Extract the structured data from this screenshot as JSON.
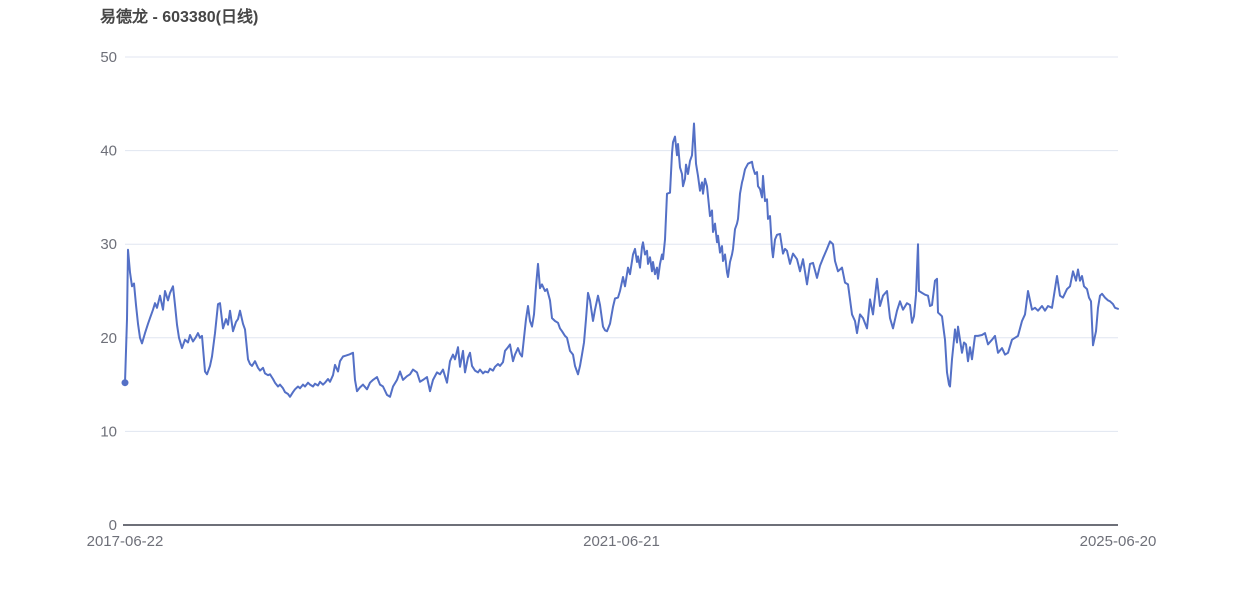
{
  "chart": {
    "colors": {
      "line": "#5470c6",
      "grid_line": "#e0e6f1",
      "axis_line": "#6e7079",
      "tick_label": "#6e7079",
      "title": "#464646",
      "background": "#ffffff"
    }
  },
  "chart_data": {
    "type": "line",
    "title": "易德龙 - 603380(日线)",
    "xlabel": "",
    "ylabel": "",
    "x_tick_labels": [
      "2017-06-22",
      "2021-06-21",
      "2025-06-20"
    ],
    "x_range": [
      "2017-06-22",
      "2025-06-20"
    ],
    "y_tick_labels": [
      0,
      10,
      20,
      30,
      40,
      50
    ],
    "ylim": [
      0,
      50
    ],
    "grid": "horizontal-gridlines-only",
    "legend": "none",
    "first_point_marker": true,
    "points_format": "[x_position_along_time_axis, price]; x maps linearly: 125 = 2017-06-22, 1118 = 2025-06-20",
    "points": [
      [
        125,
        15.2
      ],
      [
        127,
        22.0
      ],
      [
        128,
        29.4
      ],
      [
        130,
        27.0
      ],
      [
        132,
        25.5
      ],
      [
        134,
        25.8
      ],
      [
        136,
        23.5
      ],
      [
        138,
        21.5
      ],
      [
        140,
        20.0
      ],
      [
        142,
        19.4
      ],
      [
        145,
        20.5
      ],
      [
        148,
        21.5
      ],
      [
        150,
        22.1
      ],
      [
        153,
        23.0
      ],
      [
        155,
        23.7
      ],
      [
        157,
        23.2
      ],
      [
        160,
        24.5
      ],
      [
        163,
        23.0
      ],
      [
        165,
        25.0
      ],
      [
        168,
        24.0
      ],
      [
        170,
        24.8
      ],
      [
        173,
        25.5
      ],
      [
        175,
        23.5
      ],
      [
        177,
        21.4
      ],
      [
        179,
        20.0
      ],
      [
        182,
        18.9
      ],
      [
        185,
        19.8
      ],
      [
        188,
        19.5
      ],
      [
        190,
        20.3
      ],
      [
        193,
        19.6
      ],
      [
        196,
        20.1
      ],
      [
        198,
        20.5
      ],
      [
        200,
        20.0
      ],
      [
        202,
        20.2
      ],
      [
        205,
        16.4
      ],
      [
        207,
        16.1
      ],
      [
        210,
        17.0
      ],
      [
        212,
        18.0
      ],
      [
        215,
        20.5
      ],
      [
        218,
        23.6
      ],
      [
        220,
        23.7
      ],
      [
        223,
        21.0
      ],
      [
        226,
        22.0
      ],
      [
        228,
        21.4
      ],
      [
        230,
        22.9
      ],
      [
        233,
        20.7
      ],
      [
        236,
        21.7
      ],
      [
        238,
        22.0
      ],
      [
        240,
        22.9
      ],
      [
        243,
        21.5
      ],
      [
        245,
        20.9
      ],
      [
        248,
        17.7
      ],
      [
        250,
        17.2
      ],
      [
        252,
        17.0
      ],
      [
        255,
        17.5
      ],
      [
        258,
        16.8
      ],
      [
        260,
        16.5
      ],
      [
        263,
        16.8
      ],
      [
        265,
        16.2
      ],
      [
        268,
        16.0
      ],
      [
        270,
        16.1
      ],
      [
        273,
        15.6
      ],
      [
        275,
        15.2
      ],
      [
        278,
        14.8
      ],
      [
        280,
        15.0
      ],
      [
        283,
        14.6
      ],
      [
        285,
        14.2
      ],
      [
        288,
        14.0
      ],
      [
        290,
        13.7
      ],
      [
        293,
        14.2
      ],
      [
        295,
        14.5
      ],
      [
        298,
        14.8
      ],
      [
        300,
        14.6
      ],
      [
        303,
        15.0
      ],
      [
        305,
        14.8
      ],
      [
        308,
        15.2
      ],
      [
        310,
        15.0
      ],
      [
        313,
        14.8
      ],
      [
        315,
        15.1
      ],
      [
        318,
        14.9
      ],
      [
        320,
        15.3
      ],
      [
        323,
        15.0
      ],
      [
        325,
        15.2
      ],
      [
        328,
        15.6
      ],
      [
        330,
        15.3
      ],
      [
        333,
        16.0
      ],
      [
        335,
        17.1
      ],
      [
        338,
        16.4
      ],
      [
        340,
        17.5
      ],
      [
        343,
        18.0
      ],
      [
        346,
        18.1
      ],
      [
        349,
        18.2
      ],
      [
        351,
        18.3
      ],
      [
        353,
        18.4
      ],
      [
        355,
        15.5
      ],
      [
        357,
        14.3
      ],
      [
        360,
        14.7
      ],
      [
        363,
        15.0
      ],
      [
        367,
        14.5
      ],
      [
        370,
        15.2
      ],
      [
        373,
        15.5
      ],
      [
        377,
        15.8
      ],
      [
        380,
        15.0
      ],
      [
        383,
        14.8
      ],
      [
        387,
        13.9
      ],
      [
        390,
        13.7
      ],
      [
        393,
        14.8
      ],
      [
        397,
        15.5
      ],
      [
        400,
        16.4
      ],
      [
        403,
        15.5
      ],
      [
        407,
        15.9
      ],
      [
        410,
        16.1
      ],
      [
        413,
        16.6
      ],
      [
        417,
        16.3
      ],
      [
        420,
        15.3
      ],
      [
        423,
        15.5
      ],
      [
        427,
        15.8
      ],
      [
        430,
        14.3
      ],
      [
        433,
        15.5
      ],
      [
        437,
        16.3
      ],
      [
        440,
        16.1
      ],
      [
        443,
        16.6
      ],
      [
        447,
        15.2
      ],
      [
        450,
        17.5
      ],
      [
        453,
        18.2
      ],
      [
        455,
        17.7
      ],
      [
        458,
        19.0
      ],
      [
        460,
        16.9
      ],
      [
        463,
        18.6
      ],
      [
        465,
        16.3
      ],
      [
        468,
        17.9
      ],
      [
        470,
        18.4
      ],
      [
        472,
        17.0
      ],
      [
        475,
        16.5
      ],
      [
        478,
        16.3
      ],
      [
        480,
        16.6
      ],
      [
        483,
        16.2
      ],
      [
        485,
        16.4
      ],
      [
        488,
        16.3
      ],
      [
        490,
        16.7
      ],
      [
        493,
        16.5
      ],
      [
        495,
        16.9
      ],
      [
        498,
        17.2
      ],
      [
        500,
        17.0
      ],
      [
        503,
        17.4
      ],
      [
        505,
        18.6
      ],
      [
        508,
        19.0
      ],
      [
        510,
        19.3
      ],
      [
        513,
        17.5
      ],
      [
        515,
        18.2
      ],
      [
        518,
        18.9
      ],
      [
        520,
        18.3
      ],
      [
        522,
        18.0
      ],
      [
        524,
        20.0
      ],
      [
        526,
        22.0
      ],
      [
        528,
        23.4
      ],
      [
        530,
        21.8
      ],
      [
        532,
        21.2
      ],
      [
        534,
        22.5
      ],
      [
        536,
        25.5
      ],
      [
        538,
        27.9
      ],
      [
        540,
        25.3
      ],
      [
        542,
        25.7
      ],
      [
        545,
        25.0
      ],
      [
        547,
        25.2
      ],
      [
        550,
        24.0
      ],
      [
        552,
        22.1
      ],
      [
        555,
        21.8
      ],
      [
        558,
        21.6
      ],
      [
        560,
        21.0
      ],
      [
        562,
        20.7
      ],
      [
        565,
        20.2
      ],
      [
        567,
        20.0
      ],
      [
        570,
        18.6
      ],
      [
        573,
        18.2
      ],
      [
        575,
        17.0
      ],
      [
        578,
        16.1
      ],
      [
        580,
        17.0
      ],
      [
        582,
        18.2
      ],
      [
        584,
        19.5
      ],
      [
        586,
        22.0
      ],
      [
        588,
        24.8
      ],
      [
        590,
        24.0
      ],
      [
        593,
        21.8
      ],
      [
        595,
        23.0
      ],
      [
        598,
        24.5
      ],
      [
        600,
        23.5
      ],
      [
        603,
        21.2
      ],
      [
        605,
        20.8
      ],
      [
        607,
        20.7
      ],
      [
        610,
        21.5
      ],
      [
        613,
        23.3
      ],
      [
        615,
        24.2
      ],
      [
        618,
        24.3
      ],
      [
        620,
        25.0
      ],
      [
        623,
        26.5
      ],
      [
        625,
        25.5
      ],
      [
        628,
        27.5
      ],
      [
        630,
        26.8
      ],
      [
        633,
        28.9
      ],
      [
        635,
        29.5
      ],
      [
        637,
        28.1
      ],
      [
        638,
        28.7
      ],
      [
        640,
        27.5
      ],
      [
        642,
        29.7
      ],
      [
        643,
        30.2
      ],
      [
        645,
        28.9
      ],
      [
        647,
        29.3
      ],
      [
        648,
        27.9
      ],
      [
        650,
        28.6
      ],
      [
        652,
        27.1
      ],
      [
        653,
        28.1
      ],
      [
        655,
        26.8
      ],
      [
        657,
        27.5
      ],
      [
        658,
        26.3
      ],
      [
        660,
        27.9
      ],
      [
        662,
        28.9
      ],
      [
        663,
        28.4
      ],
      [
        665,
        30.5
      ],
      [
        667,
        35.4
      ],
      [
        670,
        35.5
      ],
      [
        672,
        39.7
      ],
      [
        673,
        40.9
      ],
      [
        675,
        41.5
      ],
      [
        677,
        39.5
      ],
      [
        678,
        40.7
      ],
      [
        680,
        38.2
      ],
      [
        682,
        37.5
      ],
      [
        683,
        36.2
      ],
      [
        685,
        37.0
      ],
      [
        686,
        38.5
      ],
      [
        688,
        37.5
      ],
      [
        690,
        38.9
      ],
      [
        692,
        39.5
      ],
      [
        694,
        42.9
      ],
      [
        696,
        38.6
      ],
      [
        698,
        37.3
      ],
      [
        700,
        35.7
      ],
      [
        702,
        36.6
      ],
      [
        703,
        35.4
      ],
      [
        705,
        37.0
      ],
      [
        707,
        36.2
      ],
      [
        710,
        33.0
      ],
      [
        712,
        33.6
      ],
      [
        713,
        31.3
      ],
      [
        715,
        32.2
      ],
      [
        717,
        30.2
      ],
      [
        718,
        30.9
      ],
      [
        720,
        29.1
      ],
      [
        722,
        29.8
      ],
      [
        723,
        28.2
      ],
      [
        725,
        28.9
      ],
      [
        727,
        27.0
      ],
      [
        728,
        26.5
      ],
      [
        730,
        28.1
      ],
      [
        732,
        28.9
      ],
      [
        733,
        29.5
      ],
      [
        735,
        31.6
      ],
      [
        737,
        32.2
      ],
      [
        738,
        32.7
      ],
      [
        740,
        35.4
      ],
      [
        742,
        36.6
      ],
      [
        743,
        37.0
      ],
      [
        745,
        38.0
      ],
      [
        748,
        38.6
      ],
      [
        752,
        38.8
      ],
      [
        753,
        38.2
      ],
      [
        755,
        37.5
      ],
      [
        757,
        37.7
      ],
      [
        758,
        36.2
      ],
      [
        760,
        35.9
      ],
      [
        762,
        35.0
      ],
      [
        763,
        37.3
      ],
      [
        765,
        34.6
      ],
      [
        767,
        34.8
      ],
      [
        768,
        32.7
      ],
      [
        770,
        33.0
      ],
      [
        772,
        29.5
      ],
      [
        773,
        28.6
      ],
      [
        775,
        30.5
      ],
      [
        777,
        31.0
      ],
      [
        780,
        31.1
      ],
      [
        783,
        29.0
      ],
      [
        785,
        29.5
      ],
      [
        787,
        29.3
      ],
      [
        790,
        27.9
      ],
      [
        793,
        29.0
      ],
      [
        797,
        28.4
      ],
      [
        800,
        27.1
      ],
      [
        803,
        28.4
      ],
      [
        807,
        25.7
      ],
      [
        810,
        27.9
      ],
      [
        813,
        28.0
      ],
      [
        817,
        26.4
      ],
      [
        820,
        27.7
      ],
      [
        823,
        28.5
      ],
      [
        827,
        29.5
      ],
      [
        830,
        30.3
      ],
      [
        833,
        30.0
      ],
      [
        835,
        28.2
      ],
      [
        838,
        27.1
      ],
      [
        842,
        27.5
      ],
      [
        845,
        25.9
      ],
      [
        848,
        25.7
      ],
      [
        852,
        22.5
      ],
      [
        855,
        21.8
      ],
      [
        857,
        20.5
      ],
      [
        860,
        22.5
      ],
      [
        863,
        22.1
      ],
      [
        867,
        21.0
      ],
      [
        870,
        24.1
      ],
      [
        873,
        22.5
      ],
      [
        877,
        26.3
      ],
      [
        880,
        23.4
      ],
      [
        883,
        24.5
      ],
      [
        887,
        25.0
      ],
      [
        890,
        22.1
      ],
      [
        893,
        21.0
      ],
      [
        897,
        22.9
      ],
      [
        900,
        23.9
      ],
      [
        903,
        23.0
      ],
      [
        907,
        23.7
      ],
      [
        910,
        23.5
      ],
      [
        912,
        21.6
      ],
      [
        914,
        22.3
      ],
      [
        916,
        24.6
      ],
      [
        918,
        30.0
      ],
      [
        919,
        25.0
      ],
      [
        922,
        24.8
      ],
      [
        925,
        24.6
      ],
      [
        928,
        24.5
      ],
      [
        930,
        23.4
      ],
      [
        932,
        23.5
      ],
      [
        935,
        26.1
      ],
      [
        937,
        26.3
      ],
      [
        938,
        22.7
      ],
      [
        940,
        22.5
      ],
      [
        942,
        22.3
      ],
      [
        944,
        20.6
      ],
      [
        945,
        19.8
      ],
      [
        947,
        16.3
      ],
      [
        949,
        15.0
      ],
      [
        950,
        14.8
      ],
      [
        952,
        17.7
      ],
      [
        954,
        19.8
      ],
      [
        955,
        20.9
      ],
      [
        957,
        19.5
      ],
      [
        958,
        21.2
      ],
      [
        960,
        19.8
      ],
      [
        962,
        18.4
      ],
      [
        964,
        19.5
      ],
      [
        966,
        19.3
      ],
      [
        968,
        17.5
      ],
      [
        970,
        19.0
      ],
      [
        972,
        17.7
      ],
      [
        975,
        20.2
      ],
      [
        978,
        20.2
      ],
      [
        982,
        20.3
      ],
      [
        985,
        20.5
      ],
      [
        988,
        19.3
      ],
      [
        992,
        19.8
      ],
      [
        995,
        20.2
      ],
      [
        998,
        18.4
      ],
      [
        1002,
        18.9
      ],
      [
        1005,
        18.2
      ],
      [
        1008,
        18.4
      ],
      [
        1012,
        19.8
      ],
      [
        1015,
        20.0
      ],
      [
        1018,
        20.2
      ],
      [
        1022,
        21.8
      ],
      [
        1025,
        22.5
      ],
      [
        1028,
        25.0
      ],
      [
        1032,
        23.0
      ],
      [
        1035,
        23.2
      ],
      [
        1038,
        22.9
      ],
      [
        1042,
        23.4
      ],
      [
        1045,
        22.9
      ],
      [
        1048,
        23.4
      ],
      [
        1052,
        23.2
      ],
      [
        1057,
        26.6
      ],
      [
        1060,
        24.5
      ],
      [
        1063,
        24.3
      ],
      [
        1067,
        25.2
      ],
      [
        1070,
        25.5
      ],
      [
        1073,
        27.1
      ],
      [
        1076,
        26.1
      ],
      [
        1078,
        27.3
      ],
      [
        1080,
        26.1
      ],
      [
        1082,
        26.6
      ],
      [
        1084,
        25.5
      ],
      [
        1087,
        25.2
      ],
      [
        1089,
        24.3
      ],
      [
        1091,
        23.9
      ],
      [
        1093,
        19.2
      ],
      [
        1096,
        20.7
      ],
      [
        1098,
        23.2
      ],
      [
        1100,
        24.5
      ],
      [
        1102,
        24.7
      ],
      [
        1105,
        24.3
      ],
      [
        1108,
        24.0
      ],
      [
        1110,
        23.9
      ],
      [
        1113,
        23.6
      ],
      [
        1115,
        23.2
      ],
      [
        1118,
        23.1
      ]
    ]
  }
}
